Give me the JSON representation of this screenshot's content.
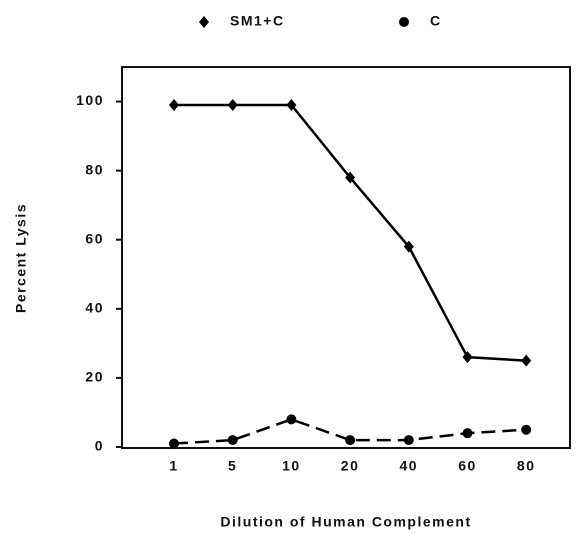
{
  "chart_data": {
    "type": "line",
    "x_label": "Dilution of Human Complement",
    "y_label": "Percent Lysis",
    "categories": [
      "1",
      "5",
      "10",
      "20",
      "40",
      "60",
      "80"
    ],
    "series": [
      {
        "name": "SM1+C",
        "color": "#000000",
        "marker": "diamond",
        "dash": "solid",
        "values": [
          99,
          99,
          99,
          78,
          58,
          26,
          25
        ]
      },
      {
        "name": "C",
        "color": "#000000",
        "marker": "circle",
        "dash": "dashed",
        "values": [
          1,
          2,
          8,
          2,
          2,
          4,
          5
        ]
      }
    ],
    "ylim": [
      0,
      110
    ],
    "yticks": [
      0,
      20,
      40,
      60,
      80,
      100
    ],
    "legend": "top"
  }
}
